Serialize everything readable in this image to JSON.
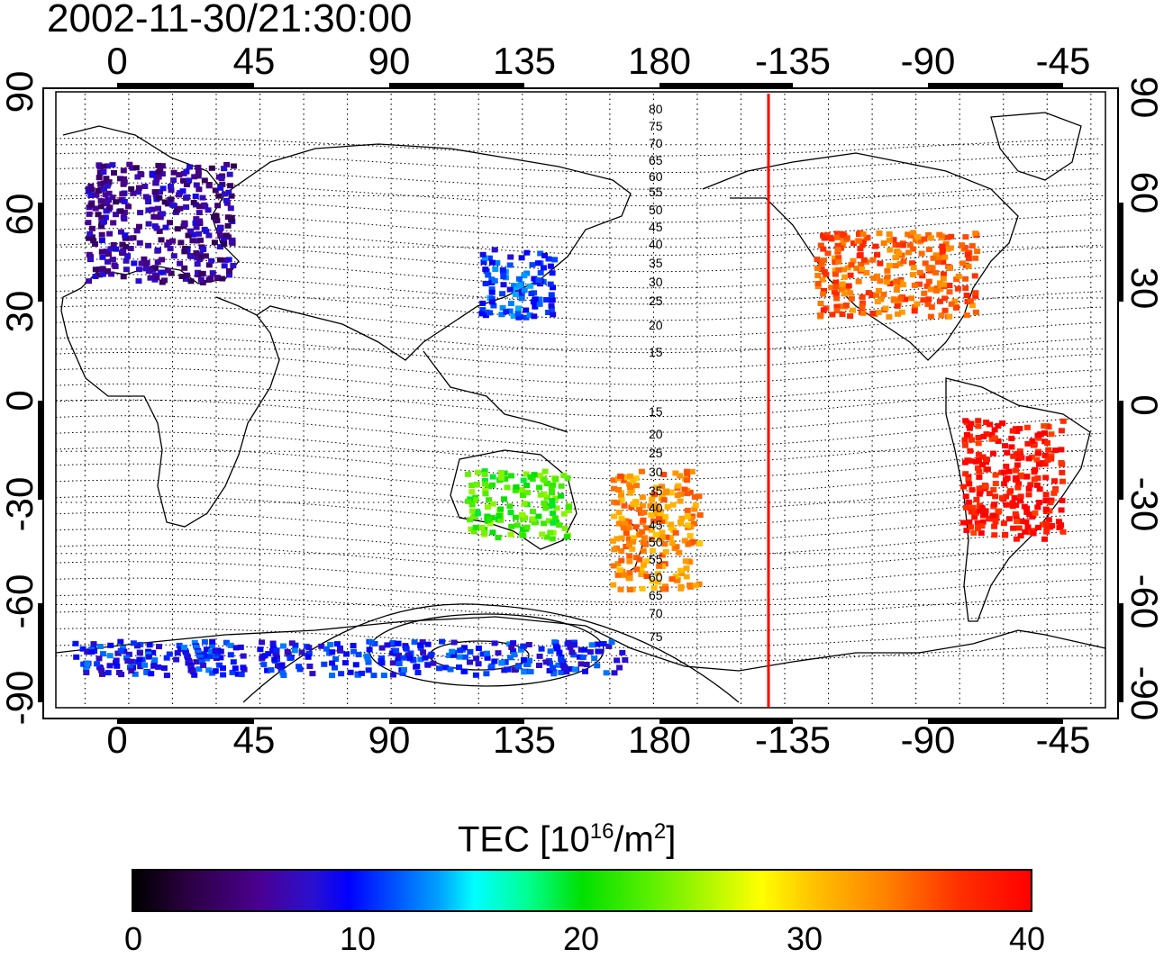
{
  "timestamp": "2002-11-30/21:30:00",
  "lon_ticks": [
    "0",
    "45",
    "90",
    "135",
    "180",
    "-135",
    "-90",
    "-45"
  ],
  "lat_ticks": [
    "90",
    "60",
    "30",
    "0",
    "-30",
    "-60",
    "-90"
  ],
  "contour_labels": [
    "80",
    "75",
    "70",
    "65",
    "60",
    "55",
    "50",
    "45",
    "40",
    "35",
    "30",
    "25",
    "20",
    "15",
    "15",
    "20",
    "25",
    "30",
    "35",
    "40",
    "45",
    "50",
    "55",
    "60",
    "65",
    "70",
    "75"
  ],
  "colorbar": {
    "title_prefix": "TEC  [10",
    "title_exp": "16",
    "title_mid": "/m",
    "title_exp2": "2",
    "title_suffix": "]",
    "ticks": [
      "0",
      "10",
      "20",
      "30",
      "40"
    ],
    "range": [
      0,
      40
    ]
  },
  "colors": {
    "terminator_line": "#ff0000",
    "frame": "#000000"
  },
  "map_data": {
    "projection": "equirectangular",
    "lon_range": [
      -25,
      335
    ],
    "lat_range": [
      -90,
      90
    ],
    "terminator_lon": -128,
    "tec_regions": [
      {
        "name": "europe",
        "lon": [
          -15,
          35
        ],
        "lat": [
          35,
          70
        ],
        "tec": 6
      },
      {
        "name": "north-america",
        "lon": [
          -125,
          -70
        ],
        "lat": [
          25,
          50
        ],
        "tec": 35
      },
      {
        "name": "east-asia",
        "lon": [
          120,
          145
        ],
        "lat": [
          25,
          45
        ],
        "tec": 11
      },
      {
        "name": "south-america",
        "lon": [
          -75,
          -40
        ],
        "lat": [
          -40,
          -5
        ],
        "tec": 39
      },
      {
        "name": "australia",
        "lon": [
          115,
          150
        ],
        "lat": [
          -40,
          -20
        ],
        "tec": 22
      },
      {
        "name": "south-pacific",
        "lon": [
          165,
          195
        ],
        "lat": [
          -55,
          -20
        ],
        "tec": 33
      },
      {
        "name": "antarctica",
        "lon": [
          -20,
          170
        ],
        "lat": [
          -80,
          -70
        ],
        "tec": 10
      }
    ]
  }
}
